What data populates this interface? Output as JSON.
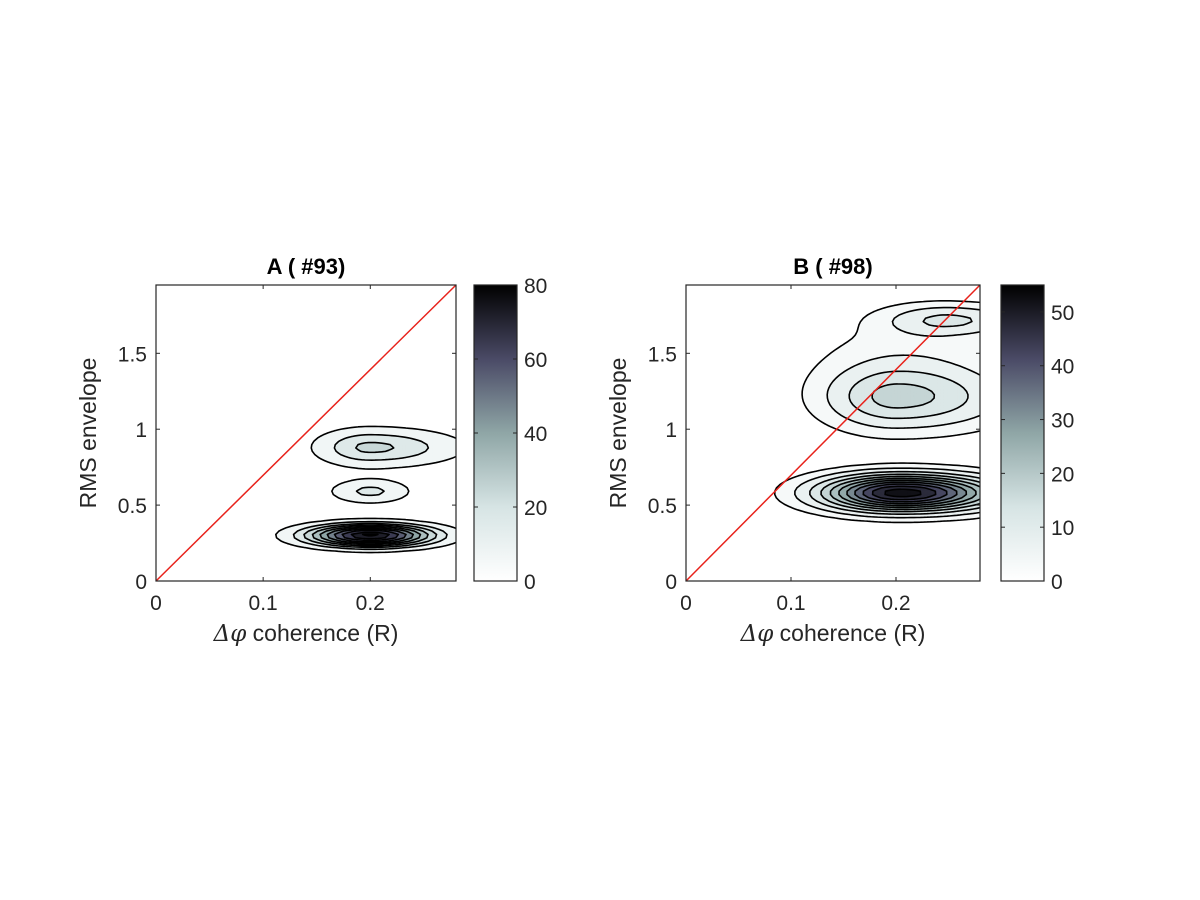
{
  "figure": {
    "background": "#ffffff",
    "colormap": "bone (reversed)",
    "contour_line_color": "#000000",
    "reference_line_color": "#e8221b"
  },
  "chart_data": [
    {
      "type": "contour",
      "panel": "A",
      "title": "A ( #93)",
      "xlabel_symbol": "Δφ",
      "xlabel_text": " coherence (R)",
      "ylabel": "RMS envelope",
      "xlim": [
        0,
        0.28
      ],
      "ylim": [
        0,
        1.95
      ],
      "xticks": [
        {
          "v": 0,
          "label": "0"
        },
        {
          "v": 0.1,
          "label": "0.1"
        },
        {
          "v": 0.2,
          "label": "0.2"
        }
      ],
      "yticks": [
        {
          "v": 0,
          "label": "0"
        },
        {
          "v": 0.5,
          "label": "0.5"
        },
        {
          "v": 1,
          "label": "1"
        },
        {
          "v": 1.5,
          "label": "1.5"
        }
      ],
      "reference_line": {
        "type": "identity",
        "x": [
          0,
          0.28
        ],
        "y": [
          0,
          1.95
        ]
      },
      "colorbar": {
        "range": [
          0,
          80
        ],
        "ticks": [
          {
            "v": 0,
            "label": "0"
          },
          {
            "v": 20,
            "label": "20"
          },
          {
            "v": 40,
            "label": "40"
          },
          {
            "v": 60,
            "label": "60"
          },
          {
            "v": 80,
            "label": "80"
          }
        ]
      },
      "peaks": [
        {
          "x": 0.2,
          "y": 0.88,
          "sx": 0.034,
          "sy": 0.085,
          "h": 26,
          "sx_right": 0.055
        },
        {
          "x": 0.2,
          "y": 0.59,
          "sx": 0.026,
          "sy": 0.055,
          "h": 18
        },
        {
          "x": 0.2,
          "y": 0.3,
          "sx": 0.04,
          "sy": 0.05,
          "h": 80
        }
      ],
      "levels": [
        7,
        16,
        24,
        32,
        40,
        48,
        56,
        64,
        72,
        78
      ]
    },
    {
      "type": "contour",
      "panel": "B",
      "title": "B ( #98)",
      "xlabel_symbol": "Δφ",
      "xlabel_text": " coherence (R)",
      "ylabel": "RMS envelope",
      "xlim": [
        0,
        0.28
      ],
      "ylim": [
        0,
        1.95
      ],
      "xticks": [
        {
          "v": 0,
          "label": "0"
        },
        {
          "v": 0.1,
          "label": "0.1"
        },
        {
          "v": 0.2,
          "label": "0.2"
        }
      ],
      "yticks": [
        {
          "v": 0,
          "label": "0"
        },
        {
          "v": 0.5,
          "label": "0.5"
        },
        {
          "v": 1,
          "label": "1"
        },
        {
          "v": 1.5,
          "label": "1.5"
        }
      ],
      "reference_line": {
        "type": "identity",
        "x": [
          0,
          0.28
        ],
        "y": [
          0,
          1.95
        ]
      },
      "colorbar": {
        "range": [
          0,
          55
        ],
        "ticks": [
          {
            "v": 0,
            "label": "0"
          },
          {
            "v": 10,
            "label": "10"
          },
          {
            "v": 20,
            "label": "20"
          },
          {
            "v": 30,
            "label": "30"
          },
          {
            "v": 40,
            "label": "40"
          },
          {
            "v": 50,
            "label": "50"
          }
        ]
      },
      "peaks": [
        {
          "x": 0.2,
          "y": 1.2,
          "sx": 0.045,
          "sy": 0.14,
          "h": 17,
          "sx_right": 0.07
        },
        {
          "x": 0.25,
          "y": 1.72,
          "sx": 0.04,
          "sy": 0.07,
          "h": 12,
          "sx_right": 0.05
        },
        {
          "x": 0.21,
          "y": 1.45,
          "sx": 0.06,
          "sy": 0.2,
          "h": 5
        },
        {
          "x": 0.205,
          "y": 0.58,
          "sx": 0.05,
          "sy": 0.08,
          "h": 55,
          "sx_right": 0.06
        }
      ],
      "levels": [
        3,
        7,
        12,
        17,
        22,
        27,
        32,
        37,
        42,
        47,
        52
      ]
    }
  ]
}
